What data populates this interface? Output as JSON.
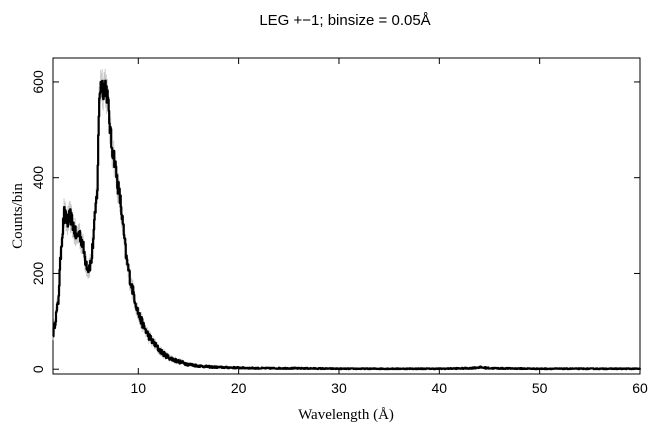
{
  "chart_data": {
    "type": "line",
    "title": "LEG +−1; binsize = 0.05Å",
    "xlabel": "Wavelength (Å)",
    "ylabel": "Counts/bin",
    "xlim": [
      1.5,
      60
    ],
    "ylim": [
      -10,
      650
    ],
    "grid": false,
    "legend": "none",
    "line_color": "#000000",
    "error_color": "#b0b0b0",
    "x_ticks": [
      10,
      20,
      30,
      40,
      50,
      60
    ],
    "y_ticks": [
      0,
      200,
      400,
      600
    ],
    "x_tick_labels": [
      "10",
      "20",
      "30",
      "40",
      "50",
      "60"
    ],
    "y_tick_labels": [
      "0",
      "200",
      "400",
      "600"
    ],
    "series": [
      {
        "x": [
          1.5,
          2.0,
          2.3,
          2.6,
          2.9,
          3.2,
          3.5,
          3.8,
          4.1,
          4.4,
          4.7,
          5.0,
          5.3,
          5.6,
          5.9,
          6.1,
          6.3,
          6.5,
          6.7,
          6.9,
          7.1,
          7.3,
          7.6,
          7.9,
          8.2,
          8.5,
          8.8,
          9.2,
          9.6,
          10.0,
          10.5,
          11.0,
          11.5,
          12.0,
          12.5,
          13.0,
          13.5,
          14.0,
          15.0,
          16.0,
          17.0,
          18.0,
          20.0,
          22.0,
          25.0,
          30.0,
          35.0,
          40.0,
          43.0,
          44.0,
          45.0,
          50.0,
          55.0,
          60.0
        ],
        "y": [
          75,
          140,
          260,
          325,
          305,
          320,
          300,
          275,
          285,
          265,
          230,
          210,
          225,
          300,
          380,
          575,
          600,
          585,
          595,
          570,
          520,
          470,
          440,
          390,
          350,
          290,
          230,
          185,
          150,
          115,
          90,
          70,
          55,
          42,
          32,
          25,
          20,
          16,
          10,
          7,
          5,
          4,
          3,
          2,
          2,
          1,
          1,
          1,
          2,
          4,
          2,
          1,
          1,
          1
        ]
      }
    ]
  }
}
